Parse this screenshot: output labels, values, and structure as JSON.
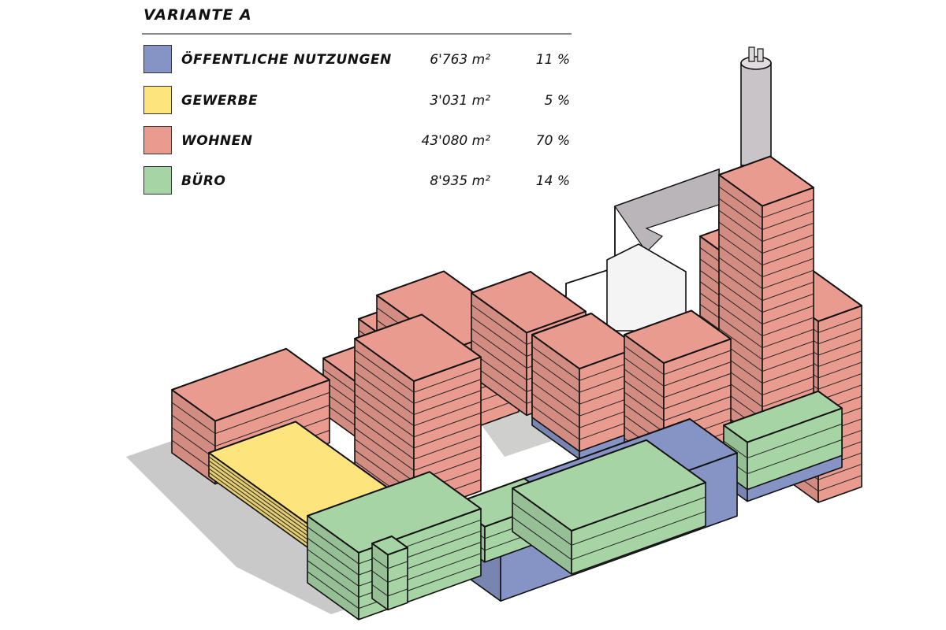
{
  "legend": {
    "title": "VARIANTE A",
    "items": [
      {
        "label": "ÖFFENTLICHE NUTZUNGEN",
        "area": "6'763 m²",
        "percent": "11 %",
        "color": "#8594c4"
      },
      {
        "label": "GEWERBE",
        "area": "3'031 m²",
        "percent": "5 %",
        "color": "#fde47c"
      },
      {
        "label": "WOHNEN",
        "area": "43'080 m²",
        "percent": "70 %",
        "color": "#ea9b8f"
      },
      {
        "label": "BÜRO",
        "area": "8'935 m²",
        "percent": "14 %",
        "color": "#a7d4a5"
      }
    ]
  }
}
